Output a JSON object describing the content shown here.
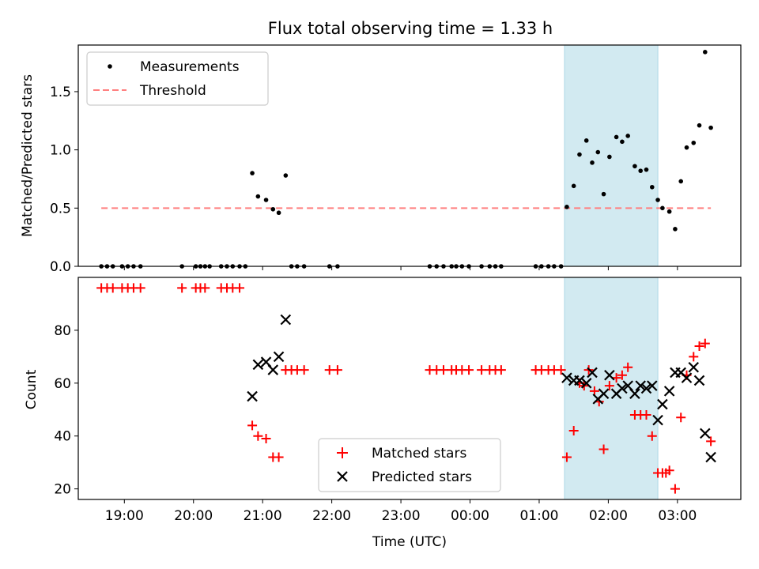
{
  "title": "Flux total observing time = 1.33 h",
  "colors": {
    "shade": "#add8e6",
    "threshold": "#ff7f7f",
    "measurement": "#000000",
    "matched": "#ff0000",
    "predicted": "#000000"
  },
  "chart_data": [
    {
      "type": "scatter",
      "ylabel": "Matched/Predicted stars",
      "ylim": [
        0,
        1.9
      ],
      "y_ticks": [
        0.0,
        0.5,
        1.0,
        1.5
      ],
      "legend_position": "top-left",
      "shaded_interval": [
        "01:22",
        "02:43"
      ],
      "series": [
        {
          "name": "Measurements",
          "marker": "dot",
          "points": [
            [
              "18:40",
              0
            ],
            [
              "18:45",
              0
            ],
            [
              "18:50",
              0
            ],
            [
              "18:58",
              0
            ],
            [
              "19:03",
              0
            ],
            [
              "19:08",
              0
            ],
            [
              "19:14",
              0
            ],
            [
              "19:50",
              0
            ],
            [
              "20:02",
              0
            ],
            [
              "20:06",
              0
            ],
            [
              "20:10",
              0
            ],
            [
              "20:14",
              0
            ],
            [
              "20:24",
              0
            ],
            [
              "20:29",
              0
            ],
            [
              "20:34",
              0
            ],
            [
              "20:40",
              0
            ],
            [
              "20:45",
              0
            ],
            [
              "20:51",
              0.8
            ],
            [
              "20:56",
              0.6
            ],
            [
              "21:03",
              0.57
            ],
            [
              "21:09",
              0.49
            ],
            [
              "21:14",
              0.46
            ],
            [
              "21:20",
              0.78
            ],
            [
              "21:25",
              0
            ],
            [
              "21:30",
              0
            ],
            [
              "21:36",
              0
            ],
            [
              "21:58",
              0
            ],
            [
              "22:05",
              0
            ],
            [
              "23:25",
              0
            ],
            [
              "23:31",
              0
            ],
            [
              "23:37",
              0
            ],
            [
              "23:44",
              0
            ],
            [
              "23:48",
              0
            ],
            [
              "23:53",
              0
            ],
            [
              "23:59",
              0
            ],
            [
              "00:10",
              0
            ],
            [
              "00:17",
              0
            ],
            [
              "00:22",
              0
            ],
            [
              "00:27",
              0
            ],
            [
              "00:57",
              0
            ],
            [
              "01:02",
              0
            ],
            [
              "01:08",
              0
            ],
            [
              "01:13",
              0
            ],
            [
              "01:19",
              0
            ],
            [
              "01:24",
              0.51
            ],
            [
              "01:30",
              0.69
            ],
            [
              "01:35",
              0.96
            ],
            [
              "01:41",
              1.08
            ],
            [
              "01:46",
              0.89
            ],
            [
              "01:51",
              0.98
            ],
            [
              "01:56",
              0.62
            ],
            [
              "02:01",
              0.94
            ],
            [
              "02:07",
              1.11
            ],
            [
              "02:12",
              1.07
            ],
            [
              "02:17",
              1.12
            ],
            [
              "02:23",
              0.86
            ],
            [
              "02:28",
              0.82
            ],
            [
              "02:33",
              0.83
            ],
            [
              "02:38",
              0.68
            ],
            [
              "02:43",
              0.57
            ],
            [
              "02:47",
              0.5
            ],
            [
              "02:53",
              0.47
            ],
            [
              "02:58",
              0.32
            ],
            [
              "03:03",
              0.73
            ],
            [
              "03:08",
              1.02
            ],
            [
              "03:14",
              1.06
            ],
            [
              "03:19",
              1.21
            ],
            [
              "03:24",
              1.84
            ],
            [
              "03:29",
              1.19
            ]
          ]
        },
        {
          "name": "Threshold",
          "style": "dashed",
          "x": [
            "18:40",
            "03:29"
          ],
          "y": [
            0.5,
            0.5
          ]
        }
      ]
    },
    {
      "type": "scatter",
      "xlabel": "Time (UTC)",
      "ylabel": "Count",
      "ylim": [
        16,
        100
      ],
      "y_ticks": [
        20,
        40,
        60,
        80
      ],
      "x_ticks": [
        "19:00",
        "20:00",
        "21:00",
        "22:00",
        "23:00",
        "00:00",
        "01:00",
        "02:00",
        "03:00"
      ],
      "legend_position": "lower-center",
      "shaded_interval": [
        "01:22",
        "02:43"
      ],
      "series": [
        {
          "name": "Matched stars",
          "marker": "plus",
          "points": [
            [
              "18:40",
              96
            ],
            [
              "18:45",
              96
            ],
            [
              "18:50",
              96
            ],
            [
              "18:58",
              96
            ],
            [
              "19:03",
              96
            ],
            [
              "19:08",
              96
            ],
            [
              "19:14",
              96
            ],
            [
              "19:50",
              96
            ],
            [
              "20:02",
              96
            ],
            [
              "20:06",
              96
            ],
            [
              "20:10",
              96
            ],
            [
              "20:24",
              96
            ],
            [
              "20:29",
              96
            ],
            [
              "20:34",
              96
            ],
            [
              "20:40",
              96
            ],
            [
              "20:51",
              44
            ],
            [
              "20:56",
              40
            ],
            [
              "21:03",
              39
            ],
            [
              "21:09",
              32
            ],
            [
              "21:14",
              32
            ],
            [
              "21:20",
              65
            ],
            [
              "21:25",
              65
            ],
            [
              "21:30",
              65
            ],
            [
              "21:36",
              65
            ],
            [
              "21:58",
              65
            ],
            [
              "22:05",
              65
            ],
            [
              "23:25",
              65
            ],
            [
              "23:31",
              65
            ],
            [
              "23:37",
              65
            ],
            [
              "23:44",
              65
            ],
            [
              "23:48",
              65
            ],
            [
              "23:53",
              65
            ],
            [
              "23:59",
              65
            ],
            [
              "00:10",
              65
            ],
            [
              "00:17",
              65
            ],
            [
              "00:22",
              65
            ],
            [
              "00:27",
              65
            ],
            [
              "00:57",
              65
            ],
            [
              "01:02",
              65
            ],
            [
              "01:08",
              65
            ],
            [
              "01:13",
              65
            ],
            [
              "01:19",
              65
            ],
            [
              "01:24",
              32
            ],
            [
              "01:30",
              42
            ],
            [
              "01:35",
              60
            ],
            [
              "01:39",
              59
            ],
            [
              "01:43",
              65
            ],
            [
              "01:48",
              57
            ],
            [
              "01:52",
              53
            ],
            [
              "01:56",
              35
            ],
            [
              "02:01",
              59
            ],
            [
              "02:07",
              62
            ],
            [
              "02:12",
              63
            ],
            [
              "02:17",
              66
            ],
            [
              "02:23",
              48
            ],
            [
              "02:28",
              48
            ],
            [
              "02:33",
              48
            ],
            [
              "02:38",
              40
            ],
            [
              "02:43",
              26
            ],
            [
              "02:47",
              26
            ],
            [
              "02:50",
              26
            ],
            [
              "02:53",
              27
            ],
            [
              "02:58",
              20
            ],
            [
              "03:03",
              47
            ],
            [
              "03:08",
              63
            ],
            [
              "03:14",
              70
            ],
            [
              "03:19",
              74
            ],
            [
              "03:24",
              75
            ],
            [
              "03:29",
              38
            ]
          ]
        },
        {
          "name": "Predicted stars",
          "marker": "x",
          "points": [
            [
              "20:51",
              55
            ],
            [
              "20:56",
              67
            ],
            [
              "21:03",
              68
            ],
            [
              "21:09",
              65
            ],
            [
              "21:14",
              70
            ],
            [
              "21:20",
              84
            ],
            [
              "01:24",
              62
            ],
            [
              "01:30",
              61
            ],
            [
              "01:35",
              61
            ],
            [
              "01:41",
              60
            ],
            [
              "01:46",
              64
            ],
            [
              "01:51",
              54
            ],
            [
              "01:56",
              56
            ],
            [
              "02:01",
              63
            ],
            [
              "02:07",
              56
            ],
            [
              "02:12",
              58
            ],
            [
              "02:17",
              59
            ],
            [
              "02:23",
              56
            ],
            [
              "02:28",
              59
            ],
            [
              "02:33",
              58
            ],
            [
              "02:38",
              59
            ],
            [
              "02:43",
              46
            ],
            [
              "02:47",
              52
            ],
            [
              "02:53",
              57
            ],
            [
              "02:58",
              64
            ],
            [
              "03:03",
              64
            ],
            [
              "03:08",
              62
            ],
            [
              "03:14",
              66
            ],
            [
              "03:19",
              61
            ],
            [
              "03:24",
              41
            ],
            [
              "03:29",
              32
            ]
          ]
        }
      ]
    }
  ]
}
